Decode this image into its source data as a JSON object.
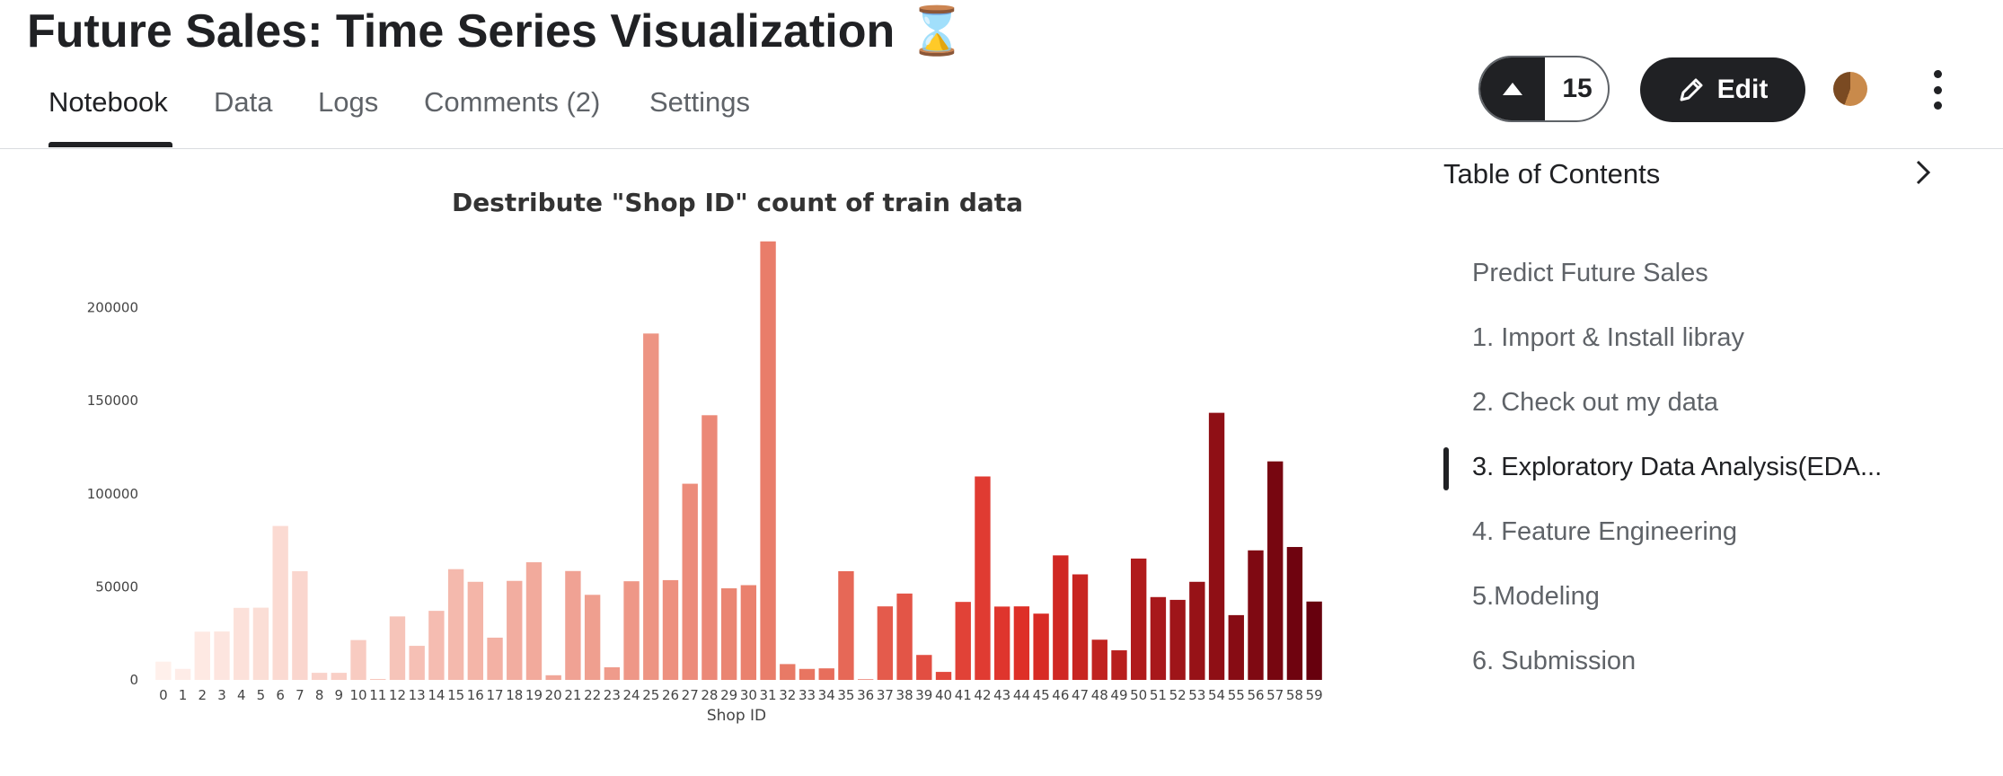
{
  "header": {
    "title": "Future Sales: Time Series Visualization ⌛",
    "vote_count": "15",
    "edit_label": "Edit"
  },
  "tabs": [
    {
      "label": "Notebook"
    },
    {
      "label": "Data"
    },
    {
      "label": "Logs"
    },
    {
      "label": "Comments (2)"
    },
    {
      "label": "Settings"
    }
  ],
  "toc": {
    "title": "Table of Contents",
    "items": [
      {
        "label": "Predict Future Sales"
      },
      {
        "label": "1. Import & Install libray"
      },
      {
        "label": "2. Check out my data"
      },
      {
        "label": "3. Exploratory Data Analysis(EDA..."
      },
      {
        "label": "4. Feature Engineering"
      },
      {
        "label": "5.Modeling"
      },
      {
        "label": "6. Submission"
      }
    ],
    "active_index": 3
  },
  "icons": {
    "vote": "triangle-up-icon",
    "edit": "pencil-icon",
    "more": "vertical-dots-icon",
    "toc": "chevron-right-icon"
  },
  "chart_data": {
    "type": "bar",
    "title": "Destribute \"Shop ID\" count of train data",
    "xlabel": "Shop ID",
    "ylabel": "",
    "ylim": [
      0,
      235000
    ],
    "yticks": [
      0,
      50000,
      100000,
      150000,
      200000
    ],
    "categories": [
      "0",
      "1",
      "2",
      "3",
      "4",
      "5",
      "6",
      "7",
      "8",
      "9",
      "10",
      "11",
      "12",
      "13",
      "14",
      "15",
      "16",
      "17",
      "18",
      "19",
      "20",
      "21",
      "22",
      "23",
      "24",
      "25",
      "26",
      "27",
      "28",
      "29",
      "30",
      "31",
      "32",
      "33",
      "34",
      "35",
      "36",
      "37",
      "38",
      "39",
      "40",
      "41",
      "42",
      "43",
      "44",
      "45",
      "46",
      "47",
      "48",
      "49",
      "50",
      "51",
      "52",
      "53",
      "54",
      "55",
      "56",
      "57",
      "58",
      "59"
    ],
    "values": [
      9800,
      5900,
      25900,
      26000,
      38700,
      38800,
      82700,
      58400,
      3800,
      3800,
      21400,
      500,
      34100,
      18300,
      37100,
      59500,
      52700,
      22700,
      53200,
      63200,
      2500,
      58500,
      45700,
      6800,
      53000,
      186100,
      53600,
      105400,
      142200,
      49200,
      50900,
      235600,
      8500,
      5900,
      6200,
      58400,
      300,
      39500,
      46400,
      13400,
      4300,
      41900,
      109300,
      39400,
      39500,
      35600,
      66900,
      56700,
      21600,
      15900,
      65200,
      44500,
      43000,
      52700,
      143500,
      34800,
      69600,
      117400,
      71400,
      42100
    ],
    "colormap": "reds",
    "color_start": "#fff0eb",
    "color_end": "#67000d",
    "grid": false,
    "legend": "none"
  }
}
